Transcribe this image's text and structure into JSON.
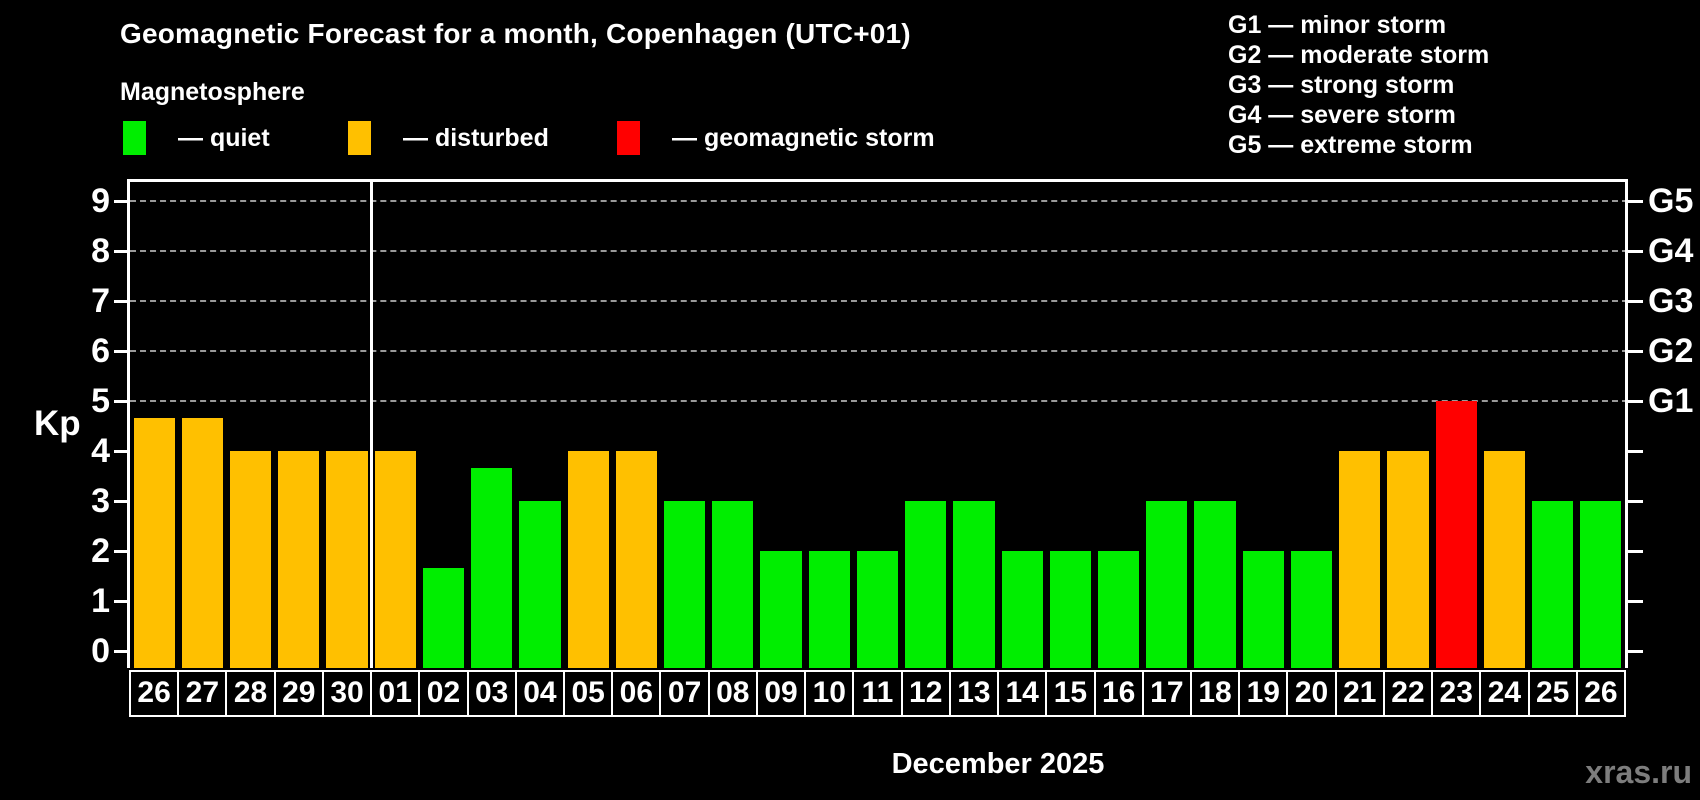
{
  "header": {
    "title": "Geomagnetic Forecast for a month, Copenhagen (UTC+01)",
    "subtitle": "Magnetosphere"
  },
  "legend": {
    "items": [
      {
        "id": "quiet",
        "label": "— quiet",
        "color": "#00EE00"
      },
      {
        "id": "disturbed",
        "label": "— disturbed",
        "color": "#FFC000"
      },
      {
        "id": "storm",
        "label": "— geomagnetic storm",
        "color": "#FF0000"
      }
    ]
  },
  "storm_scale_legend": {
    "items": [
      "G1 — minor storm",
      "G2 — moderate storm",
      "G3 — strong storm",
      "G4 — severe storm",
      "G5 — extreme storm"
    ]
  },
  "chart_data": {
    "type": "bar",
    "title": "Geomagnetic Forecast for a month, Copenhagen (UTC+01)",
    "ylabel": "Kp",
    "xlabel": "December 2025",
    "ylim": [
      0,
      9
    ],
    "yticks": [
      0,
      1,
      2,
      3,
      4,
      5,
      6,
      7,
      8,
      9
    ],
    "gridlines_at": [
      5,
      6,
      7,
      8,
      9
    ],
    "grid": "horizontal dashed lines only at Kp 5–9 (G-storm levels)",
    "legend_position": "top",
    "right_axis": [
      {
        "label": "G5",
        "value": 9
      },
      {
        "label": "G4",
        "value": 8
      },
      {
        "label": "G3",
        "value": 7
      },
      {
        "label": "G2",
        "value": 6
      },
      {
        "label": "G1",
        "value": 5
      }
    ],
    "categories": [
      "26",
      "27",
      "28",
      "29",
      "30",
      "01",
      "02",
      "03",
      "04",
      "05",
      "06",
      "07",
      "08",
      "09",
      "10",
      "11",
      "12",
      "13",
      "14",
      "15",
      "16",
      "17",
      "18",
      "19",
      "20",
      "21",
      "22",
      "23",
      "24",
      "25",
      "26"
    ],
    "values": [
      4.67,
      4.67,
      4,
      4,
      4,
      4,
      1.67,
      3.67,
      3,
      4,
      4,
      3,
      3,
      2,
      2,
      2,
      3,
      3,
      2,
      2,
      2,
      3,
      3,
      2,
      2,
      4,
      4,
      5,
      4,
      3,
      3
    ],
    "statuses": [
      "disturbed",
      "disturbed",
      "disturbed",
      "disturbed",
      "disturbed",
      "disturbed",
      "quiet",
      "quiet",
      "quiet",
      "disturbed",
      "disturbed",
      "quiet",
      "quiet",
      "quiet",
      "quiet",
      "quiet",
      "quiet",
      "quiet",
      "quiet",
      "quiet",
      "quiet",
      "quiet",
      "quiet",
      "quiet",
      "quiet",
      "disturbed",
      "disturbed",
      "storm",
      "disturbed",
      "quiet",
      "quiet"
    ],
    "status_colors": {
      "quiet": "#00EE00",
      "disturbed": "#FFC000",
      "storm": "#FF0000"
    },
    "month_separator_after_index": 4
  },
  "watermark": "xras.ru"
}
